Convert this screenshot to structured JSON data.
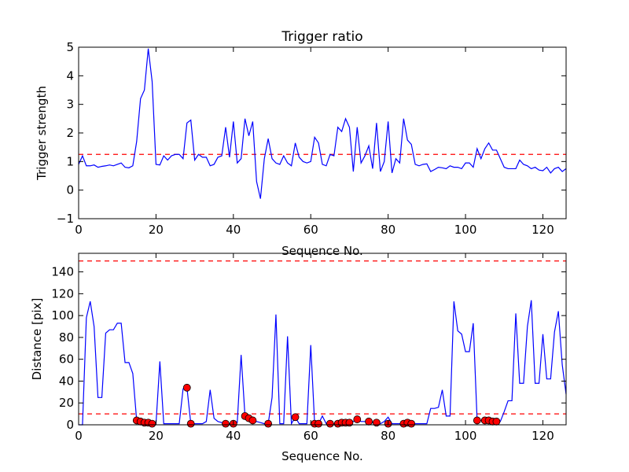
{
  "chart_data": [
    {
      "type": "line",
      "title": "Trigger ratio",
      "xlabel": "Sequence No.",
      "ylabel": "Trigger strength",
      "xlim": [
        0,
        126
      ],
      "ylim": [
        -1,
        5
      ],
      "xticks": [
        "0",
        "20",
        "40",
        "60",
        "80",
        "100",
        "120"
      ],
      "yticks": [
        "−1",
        "0",
        "1",
        "2",
        "3",
        "4",
        "5"
      ],
      "grid": false,
      "thresholds": [
        1.25
      ],
      "series": [
        {
          "color": "#0000ff",
          "x": [
            0,
            1,
            2,
            3,
            4,
            5,
            6,
            7,
            8,
            9,
            10,
            11,
            12,
            13,
            14,
            15,
            16,
            17,
            18,
            19,
            20,
            21,
            22,
            23,
            24,
            25,
            26,
            27,
            28,
            29,
            30,
            31,
            32,
            33,
            34,
            35,
            36,
            37,
            38,
            39,
            40,
            41,
            42,
            43,
            44,
            45,
            46,
            47,
            48,
            49,
            50,
            51,
            52,
            53,
            54,
            55,
            56,
            57,
            58,
            59,
            60,
            61,
            62,
            63,
            64,
            65,
            66,
            67,
            68,
            69,
            70,
            71,
            72,
            73,
            74,
            75,
            76,
            77,
            78,
            79,
            80,
            81,
            82,
            83,
            84,
            85,
            86,
            87,
            88,
            89,
            90,
            91,
            92,
            93,
            94,
            95,
            96,
            97,
            98,
            99,
            100,
            101,
            102,
            103,
            104,
            105,
            106,
            107,
            108,
            109,
            110,
            111,
            112,
            113,
            114,
            115,
            116,
            117,
            118,
            119,
            120,
            121,
            122,
            123,
            124,
            125,
            126
          ],
          "values": [
            0.9,
            1.2,
            0.85,
            0.85,
            0.88,
            0.8,
            0.83,
            0.85,
            0.88,
            0.85,
            0.9,
            0.95,
            0.8,
            0.78,
            0.85,
            1.7,
            3.2,
            3.5,
            4.95,
            3.8,
            0.9,
            0.88,
            1.2,
            1.05,
            1.2,
            1.25,
            1.25,
            1.1,
            2.35,
            2.45,
            1.05,
            1.25,
            1.15,
            1.15,
            0.85,
            0.9,
            1.15,
            1.2,
            2.2,
            1.15,
            2.4,
            0.95,
            1.1,
            2.5,
            1.9,
            2.4,
            0.3,
            -0.3,
            1.1,
            1.8,
            1.1,
            0.95,
            0.9,
            1.2,
            0.95,
            0.85,
            1.65,
            1.15,
            1.0,
            0.95,
            1.0,
            1.85,
            1.65,
            0.9,
            0.85,
            1.25,
            1.2,
            2.2,
            2.05,
            2.5,
            2.2,
            0.65,
            2.2,
            0.95,
            1.2,
            1.55,
            0.75,
            2.35,
            0.65,
            1.0,
            2.4,
            0.6,
            1.1,
            0.95,
            2.5,
            1.75,
            1.6,
            0.9,
            0.85,
            0.9,
            0.92,
            0.65,
            0.72,
            0.8,
            0.78,
            0.75,
            0.85,
            0.8,
            0.8,
            0.75,
            0.95,
            0.95,
            0.8,
            1.45,
            1.1,
            1.45,
            1.65,
            1.4,
            1.4,
            1.1,
            0.8,
            0.75,
            0.75,
            0.75,
            1.05,
            0.9,
            0.85,
            0.75,
            0.8,
            0.7,
            0.68,
            0.8,
            0.6,
            0.75,
            0.8,
            0.65,
            0.75
          ]
        }
      ]
    },
    {
      "type": "line",
      "title": "",
      "xlabel": "Sequence No.",
      "ylabel": "Distance [pix]",
      "xlim": [
        0,
        126
      ],
      "ylim": [
        0,
        157
      ],
      "xticks": [
        "0",
        "20",
        "40",
        "60",
        "80",
        "100",
        "120"
      ],
      "yticks": [
        "0",
        "20",
        "40",
        "60",
        "80",
        "100",
        "120",
        "140"
      ],
      "grid": false,
      "thresholds": [
        150,
        10
      ],
      "series": [
        {
          "color": "#0000ff",
          "x": [
            0,
            1,
            2,
            3,
            4,
            5,
            6,
            7,
            8,
            9,
            10,
            11,
            12,
            13,
            14,
            15,
            16,
            17,
            18,
            19,
            20,
            21,
            22,
            23,
            24,
            25,
            26,
            27,
            28,
            29,
            30,
            31,
            32,
            33,
            34,
            35,
            36,
            37,
            38,
            39,
            40,
            41,
            42,
            43,
            44,
            45,
            46,
            47,
            48,
            49,
            50,
            51,
            52,
            53,
            54,
            55,
            56,
            57,
            58,
            59,
            60,
            61,
            62,
            63,
            64,
            65,
            66,
            67,
            68,
            69,
            70,
            71,
            72,
            73,
            74,
            75,
            76,
            77,
            78,
            79,
            80,
            81,
            82,
            83,
            84,
            85,
            86,
            87,
            88,
            89,
            90,
            91,
            92,
            93,
            94,
            95,
            96,
            97,
            98,
            99,
            100,
            101,
            102,
            103,
            104,
            105,
            106,
            107,
            108,
            109,
            110,
            111,
            112,
            113,
            114,
            115,
            116,
            117,
            118,
            119,
            120,
            121,
            122,
            123,
            124,
            125,
            126
          ],
          "values": [
            0,
            0,
            98,
            113,
            90,
            25,
            25,
            84,
            87,
            87,
            93,
            93,
            57,
            57,
            47,
            4,
            3,
            2,
            2,
            2,
            1,
            58,
            1,
            1,
            1,
            1,
            1,
            33,
            34,
            1,
            1,
            1,
            1,
            3,
            32,
            6,
            3,
            2,
            1,
            1,
            1,
            2,
            64,
            8,
            6,
            4,
            3,
            2,
            1,
            1,
            25,
            101,
            1,
            1,
            81,
            1,
            7,
            1,
            1,
            1,
            73,
            1,
            1,
            8,
            1,
            1,
            1,
            1,
            2,
            2,
            2,
            3,
            5,
            3,
            3,
            2,
            2,
            2,
            1,
            3,
            7,
            1,
            1,
            1,
            1,
            2,
            1,
            1,
            1,
            1,
            1,
            15,
            15,
            16,
            32,
            8,
            8,
            113,
            86,
            83,
            67,
            67,
            93,
            4,
            4,
            4,
            4,
            3,
            3,
            3,
            12,
            22,
            22,
            102,
            38,
            38,
            90,
            114,
            38,
            38,
            83,
            42,
            42,
            85,
            104,
            55,
            28
          ]
        },
        {
          "type": "scatter",
          "color": "#ff0000",
          "x": [
            15,
            16,
            17,
            18,
            19,
            28,
            29,
            38,
            40,
            43,
            44,
            45,
            49,
            56,
            61,
            62,
            65,
            67,
            68,
            69,
            70,
            72,
            75,
            77,
            80,
            84,
            85,
            86,
            103,
            105,
            106,
            107,
            108
          ],
          "values": [
            4,
            3,
            2,
            2,
            1,
            34,
            1,
            1,
            1,
            8,
            6,
            4,
            1,
            7,
            1,
            1,
            1,
            1,
            2,
            2,
            2,
            5,
            3,
            2,
            1,
            1,
            2,
            1,
            4,
            4,
            4,
            3,
            3
          ]
        }
      ]
    }
  ]
}
